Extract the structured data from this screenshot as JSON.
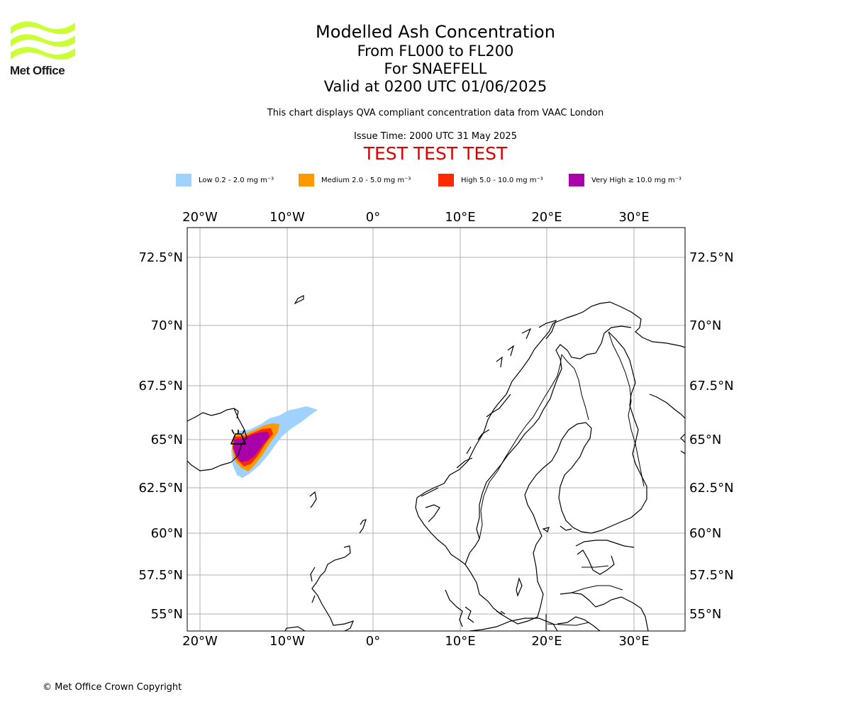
{
  "logo": {
    "text": "Met Office",
    "color": "#ccff33"
  },
  "header": {
    "title": "Modelled Ash Concentration",
    "levels": "From FL000 to FL200",
    "volcano": "For SNAEFELL",
    "valid": "Valid at 0200 UTC 01/06/2025",
    "note": "This chart displays QVA compliant concentration data from VAAC London",
    "issue": "Issue Time: 2000 UTC 31 May 2025",
    "test_banner": "TEST TEST TEST"
  },
  "legend": [
    {
      "label": "Low 0.2 - 2.0 mg m⁻³",
      "color": "#a0d2ff"
    },
    {
      "label": "Medium 2.0 - 5.0 mg m⁻³",
      "color": "#ff9900"
    },
    {
      "label": "High 5.0 - 10.0 mg m⁻³",
      "color": "#ff2800"
    },
    {
      "label": "Very High  ≥  10.0 mg m⁻³",
      "color": "#aa00aa"
    }
  ],
  "map": {
    "lon_ticks": [
      "20°W",
      "10°W",
      "0°",
      "10°E",
      "20°E",
      "30°E"
    ],
    "lat_ticks": [
      "72.5°N",
      "70°N",
      "67.5°N",
      "65°N",
      "62.5°N",
      "60°N",
      "57.5°N",
      "55°N"
    ],
    "grid": true,
    "volcano_symbol": "volcano-icon"
  },
  "footer": {
    "copyright": "© Met Office Crown Copyright"
  }
}
